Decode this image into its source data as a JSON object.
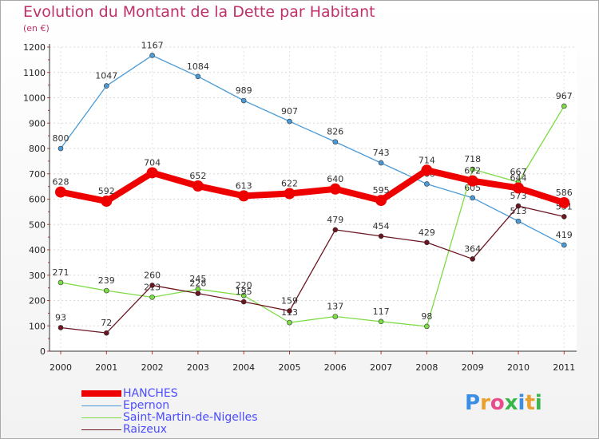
{
  "title": "Evolution du Montant de la Dette par Habitant",
  "unit": "(en €)",
  "logo": {
    "text": "Proxiti",
    "letter_colors": [
      "#3a8ee6",
      "#e8a030",
      "#e74c8c",
      "#3ab54a",
      "#3a8ee6",
      "#e8a030",
      "#3ab54a"
    ]
  },
  "chart_data": {
    "type": "line",
    "title": "Evolution du Montant de la Dette par Habitant",
    "ylabel": "(en €)",
    "xlabel": "",
    "categories": [
      "2000",
      "2001",
      "2002",
      "2003",
      "2004",
      "2005",
      "2006",
      "2007",
      "2008",
      "2009",
      "2010",
      "2011"
    ],
    "ylim": [
      0,
      1200
    ],
    "yticks": [
      0,
      100,
      200,
      300,
      400,
      500,
      600,
      700,
      800,
      900,
      1000,
      1100,
      1200
    ],
    "grid": true,
    "legend_placement": "bottom-left",
    "series": [
      {
        "name": "HANCHES",
        "color": "#ee0000",
        "emphasis": true,
        "values": [
          628,
          592,
          704,
          652,
          613,
          622,
          640,
          595,
          714,
          672,
          644,
          586
        ]
      },
      {
        "name": "Epernon",
        "color": "#4b9bd8",
        "emphasis": false,
        "values": [
          800,
          1047,
          1167,
          1084,
          989,
          907,
          826,
          743,
          660,
          605,
          513,
          419
        ]
      },
      {
        "name": "Saint-Martin-de-Nigelles",
        "color": "#7ddc45",
        "emphasis": false,
        "values": [
          271,
          239,
          213,
          245,
          220,
          113,
          137,
          117,
          98,
          718,
          667,
          967
        ]
      },
      {
        "name": "Raizeux",
        "color": "#6b1520",
        "emphasis": false,
        "values": [
          93,
          72,
          260,
          228,
          195,
          159,
          479,
          454,
          429,
          364,
          573,
          531
        ]
      }
    ]
  }
}
